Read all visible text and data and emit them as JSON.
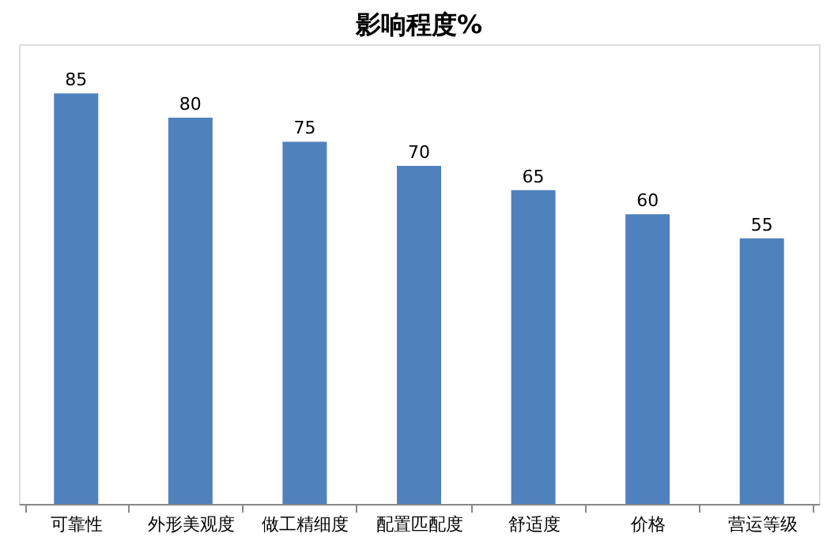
{
  "chart_data": {
    "type": "bar",
    "title": "影响程度%",
    "categories": [
      "可靠性",
      "外形美观度",
      "做工精细度",
      "配置匹配度",
      "舒适度",
      "价格",
      "营运等级"
    ],
    "values": [
      85,
      80,
      75,
      70,
      65,
      60,
      55
    ],
    "color": "#4f81bd",
    "data_labels": true
  }
}
